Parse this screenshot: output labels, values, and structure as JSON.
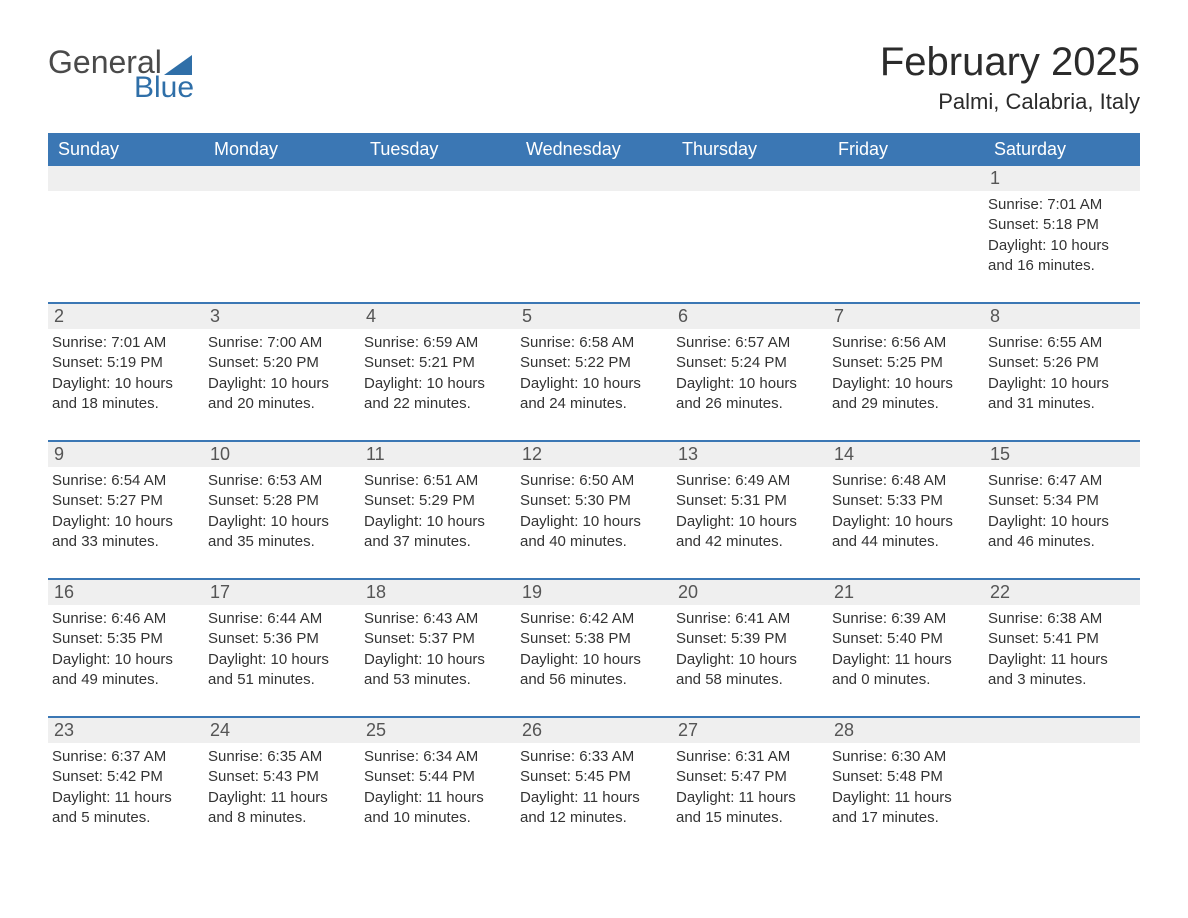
{
  "brand": {
    "general": "General",
    "blue": "Blue"
  },
  "title": "February 2025",
  "location": "Palmi, Calabria, Italy",
  "colors": {
    "header_bg": "#3b77b4",
    "header_text": "#ffffff",
    "band_bg": "#efefef",
    "rule": "#3b77b4",
    "logo_blue": "#2f6fa8",
    "body_text": "#333333",
    "background": "#ffffff"
  },
  "typography": {
    "title_fontsize": 40,
    "location_fontsize": 22,
    "header_fontsize": 18,
    "daynum_fontsize": 18,
    "body_fontsize": 15
  },
  "weekday_headers": [
    "Sunday",
    "Monday",
    "Tuesday",
    "Wednesday",
    "Thursday",
    "Friday",
    "Saturday"
  ],
  "weeks": [
    {
      "nums": [
        "",
        "",
        "",
        "",
        "",
        "",
        "1"
      ],
      "cells": [
        {
          "sunrise": "",
          "sunset": "",
          "daylight": ""
        },
        {
          "sunrise": "",
          "sunset": "",
          "daylight": ""
        },
        {
          "sunrise": "",
          "sunset": "",
          "daylight": ""
        },
        {
          "sunrise": "",
          "sunset": "",
          "daylight": ""
        },
        {
          "sunrise": "",
          "sunset": "",
          "daylight": ""
        },
        {
          "sunrise": "",
          "sunset": "",
          "daylight": ""
        },
        {
          "sunrise": "Sunrise: 7:01 AM",
          "sunset": "Sunset: 5:18 PM",
          "daylight": "Daylight: 10 hours and 16 minutes."
        }
      ]
    },
    {
      "nums": [
        "2",
        "3",
        "4",
        "5",
        "6",
        "7",
        "8"
      ],
      "cells": [
        {
          "sunrise": "Sunrise: 7:01 AM",
          "sunset": "Sunset: 5:19 PM",
          "daylight": "Daylight: 10 hours and 18 minutes."
        },
        {
          "sunrise": "Sunrise: 7:00 AM",
          "sunset": "Sunset: 5:20 PM",
          "daylight": "Daylight: 10 hours and 20 minutes."
        },
        {
          "sunrise": "Sunrise: 6:59 AM",
          "sunset": "Sunset: 5:21 PM",
          "daylight": "Daylight: 10 hours and 22 minutes."
        },
        {
          "sunrise": "Sunrise: 6:58 AM",
          "sunset": "Sunset: 5:22 PM",
          "daylight": "Daylight: 10 hours and 24 minutes."
        },
        {
          "sunrise": "Sunrise: 6:57 AM",
          "sunset": "Sunset: 5:24 PM",
          "daylight": "Daylight: 10 hours and 26 minutes."
        },
        {
          "sunrise": "Sunrise: 6:56 AM",
          "sunset": "Sunset: 5:25 PM",
          "daylight": "Daylight: 10 hours and 29 minutes."
        },
        {
          "sunrise": "Sunrise: 6:55 AM",
          "sunset": "Sunset: 5:26 PM",
          "daylight": "Daylight: 10 hours and 31 minutes."
        }
      ]
    },
    {
      "nums": [
        "9",
        "10",
        "11",
        "12",
        "13",
        "14",
        "15"
      ],
      "cells": [
        {
          "sunrise": "Sunrise: 6:54 AM",
          "sunset": "Sunset: 5:27 PM",
          "daylight": "Daylight: 10 hours and 33 minutes."
        },
        {
          "sunrise": "Sunrise: 6:53 AM",
          "sunset": "Sunset: 5:28 PM",
          "daylight": "Daylight: 10 hours and 35 minutes."
        },
        {
          "sunrise": "Sunrise: 6:51 AM",
          "sunset": "Sunset: 5:29 PM",
          "daylight": "Daylight: 10 hours and 37 minutes."
        },
        {
          "sunrise": "Sunrise: 6:50 AM",
          "sunset": "Sunset: 5:30 PM",
          "daylight": "Daylight: 10 hours and 40 minutes."
        },
        {
          "sunrise": "Sunrise: 6:49 AM",
          "sunset": "Sunset: 5:31 PM",
          "daylight": "Daylight: 10 hours and 42 minutes."
        },
        {
          "sunrise": "Sunrise: 6:48 AM",
          "sunset": "Sunset: 5:33 PM",
          "daylight": "Daylight: 10 hours and 44 minutes."
        },
        {
          "sunrise": "Sunrise: 6:47 AM",
          "sunset": "Sunset: 5:34 PM",
          "daylight": "Daylight: 10 hours and 46 minutes."
        }
      ]
    },
    {
      "nums": [
        "16",
        "17",
        "18",
        "19",
        "20",
        "21",
        "22"
      ],
      "cells": [
        {
          "sunrise": "Sunrise: 6:46 AM",
          "sunset": "Sunset: 5:35 PM",
          "daylight": "Daylight: 10 hours and 49 minutes."
        },
        {
          "sunrise": "Sunrise: 6:44 AM",
          "sunset": "Sunset: 5:36 PM",
          "daylight": "Daylight: 10 hours and 51 minutes."
        },
        {
          "sunrise": "Sunrise: 6:43 AM",
          "sunset": "Sunset: 5:37 PM",
          "daylight": "Daylight: 10 hours and 53 minutes."
        },
        {
          "sunrise": "Sunrise: 6:42 AM",
          "sunset": "Sunset: 5:38 PM",
          "daylight": "Daylight: 10 hours and 56 minutes."
        },
        {
          "sunrise": "Sunrise: 6:41 AM",
          "sunset": "Sunset: 5:39 PM",
          "daylight": "Daylight: 10 hours and 58 minutes."
        },
        {
          "sunrise": "Sunrise: 6:39 AM",
          "sunset": "Sunset: 5:40 PM",
          "daylight": "Daylight: 11 hours and 0 minutes."
        },
        {
          "sunrise": "Sunrise: 6:38 AM",
          "sunset": "Sunset: 5:41 PM",
          "daylight": "Daylight: 11 hours and 3 minutes."
        }
      ]
    },
    {
      "nums": [
        "23",
        "24",
        "25",
        "26",
        "27",
        "28",
        ""
      ],
      "cells": [
        {
          "sunrise": "Sunrise: 6:37 AM",
          "sunset": "Sunset: 5:42 PM",
          "daylight": "Daylight: 11 hours and 5 minutes."
        },
        {
          "sunrise": "Sunrise: 6:35 AM",
          "sunset": "Sunset: 5:43 PM",
          "daylight": "Daylight: 11 hours and 8 minutes."
        },
        {
          "sunrise": "Sunrise: 6:34 AM",
          "sunset": "Sunset: 5:44 PM",
          "daylight": "Daylight: 11 hours and 10 minutes."
        },
        {
          "sunrise": "Sunrise: 6:33 AM",
          "sunset": "Sunset: 5:45 PM",
          "daylight": "Daylight: 11 hours and 12 minutes."
        },
        {
          "sunrise": "Sunrise: 6:31 AM",
          "sunset": "Sunset: 5:47 PM",
          "daylight": "Daylight: 11 hours and 15 minutes."
        },
        {
          "sunrise": "Sunrise: 6:30 AM",
          "sunset": "Sunset: 5:48 PM",
          "daylight": "Daylight: 11 hours and 17 minutes."
        },
        {
          "sunrise": "",
          "sunset": "",
          "daylight": ""
        }
      ]
    }
  ]
}
